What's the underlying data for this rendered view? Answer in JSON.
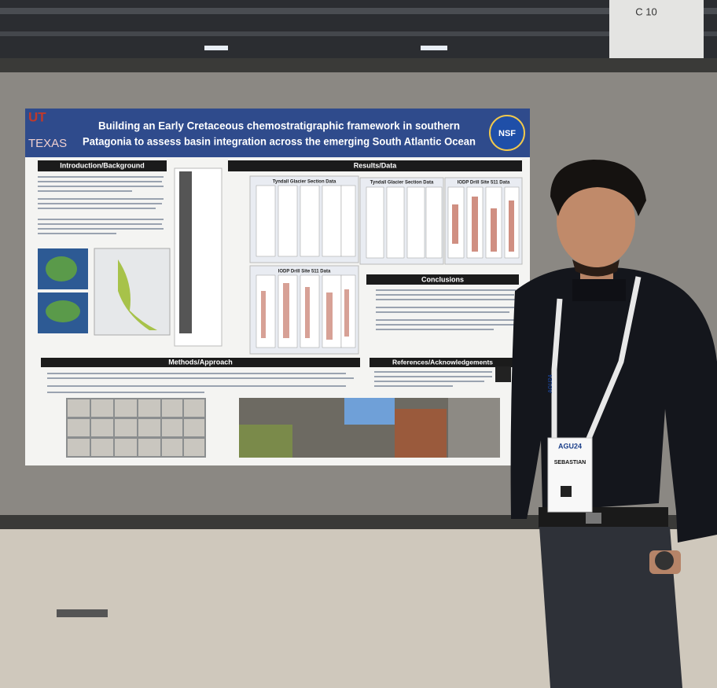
{
  "sign": "C 10",
  "poster": {
    "logo_left": [
      "UT",
      "TEXAS"
    ],
    "logo_right": "NSF",
    "title_lines": [
      "Building an Early Cretaceous chemostratigraphic framework in southern",
      "Patagonia to assess basin integration across the emerging South Atlantic Ocean"
    ],
    "sections": [
      "Introduction/Background",
      "Results/Data",
      "Conclusions",
      "Methods/Approach",
      "References/Acknowledgements"
    ],
    "panels": [
      "Tyndall Glacier Section Data",
      "Tyndall Glacier Section Data",
      "IODP Drill Site 511 Data",
      "IODP Drill Site 511 Data"
    ]
  },
  "badge": {
    "event": "AGU24",
    "name": "SEBASTIAN",
    "lanyard": "AGU24"
  }
}
